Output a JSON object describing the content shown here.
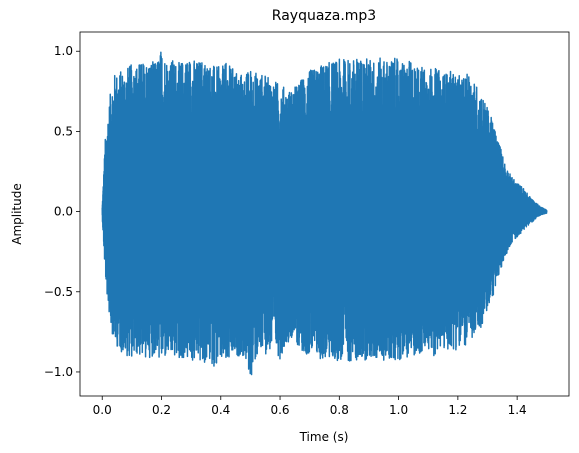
{
  "chart_data": {
    "type": "line",
    "title": "Rayquaza.mp3",
    "xlabel": "Time (s)",
    "ylabel": "Amplitude",
    "xlim": [
      -0.075,
      1.575
    ],
    "ylim": [
      -1.15,
      1.12
    ],
    "grid": false,
    "series_color": "#1f77b4",
    "x_ticks": [
      {
        "value": 0.0,
        "label": "0.0"
      },
      {
        "value": 0.2,
        "label": "0.2"
      },
      {
        "value": 0.4,
        "label": "0.4"
      },
      {
        "value": 0.6,
        "label": "0.6"
      },
      {
        "value": 0.8,
        "label": "0.8"
      },
      {
        "value": 1.0,
        "label": "1.0"
      },
      {
        "value": 1.2,
        "label": "1.2"
      },
      {
        "value": 1.4,
        "label": "1.4"
      }
    ],
    "y_ticks": [
      {
        "value": -1.0,
        "label": "−1.0"
      },
      {
        "value": -0.5,
        "label": "−0.5"
      },
      {
        "value": 0.0,
        "label": "0.0"
      },
      {
        "value": 0.5,
        "label": "0.5"
      },
      {
        "value": 1.0,
        "label": "1.0"
      }
    ],
    "series": [
      {
        "duration": 1.5,
        "envelope_upper": [
          [
            0.0,
            0.03
          ],
          [
            0.01,
            0.45
          ],
          [
            0.02,
            0.62
          ],
          [
            0.03,
            0.78
          ],
          [
            0.04,
            0.86
          ],
          [
            0.06,
            0.88
          ],
          [
            0.08,
            0.9
          ],
          [
            0.1,
            0.92
          ],
          [
            0.12,
            0.93
          ],
          [
            0.14,
            0.94
          ],
          [
            0.16,
            0.95
          ],
          [
            0.18,
            0.93
          ],
          [
            0.2,
            1.02
          ],
          [
            0.22,
            0.96
          ],
          [
            0.24,
            0.95
          ],
          [
            0.26,
            0.93
          ],
          [
            0.28,
            0.96
          ],
          [
            0.3,
            0.97
          ],
          [
            0.32,
            0.94
          ],
          [
            0.34,
            0.96
          ],
          [
            0.36,
            0.93
          ],
          [
            0.38,
            0.91
          ],
          [
            0.4,
            0.9
          ],
          [
            0.42,
            0.93
          ],
          [
            0.44,
            0.9
          ],
          [
            0.46,
            0.88
          ],
          [
            0.48,
            0.85
          ],
          [
            0.5,
            0.9
          ],
          [
            0.52,
            0.87
          ],
          [
            0.54,
            0.86
          ],
          [
            0.56,
            0.84
          ],
          [
            0.58,
            0.82
          ],
          [
            0.6,
            0.8
          ],
          [
            0.62,
            0.77
          ],
          [
            0.64,
            0.76
          ],
          [
            0.66,
            0.8
          ],
          [
            0.68,
            0.85
          ],
          [
            0.7,
            0.88
          ],
          [
            0.72,
            0.9
          ],
          [
            0.74,
            0.92
          ],
          [
            0.76,
            0.93
          ],
          [
            0.78,
            0.94
          ],
          [
            0.8,
            0.95
          ],
          [
            0.82,
            0.96
          ],
          [
            0.84,
            0.95
          ],
          [
            0.86,
            0.96
          ],
          [
            0.88,
            0.97
          ],
          [
            0.9,
            0.96
          ],
          [
            0.92,
            0.95
          ],
          [
            0.94,
            0.96
          ],
          [
            0.96,
            0.95
          ],
          [
            0.98,
            0.96
          ],
          [
            1.0,
            0.95
          ],
          [
            1.02,
            0.93
          ],
          [
            1.04,
            0.94
          ],
          [
            1.06,
            0.92
          ],
          [
            1.08,
            0.91
          ],
          [
            1.1,
            0.9
          ],
          [
            1.12,
            0.9
          ],
          [
            1.14,
            0.88
          ],
          [
            1.16,
            0.87
          ],
          [
            1.18,
            0.88
          ],
          [
            1.2,
            0.85
          ],
          [
            1.22,
            0.84
          ],
          [
            1.24,
            0.87
          ],
          [
            1.26,
            0.8
          ],
          [
            1.28,
            0.74
          ],
          [
            1.3,
            0.65
          ],
          [
            1.32,
            0.55
          ],
          [
            1.34,
            0.43
          ],
          [
            1.36,
            0.3
          ],
          [
            1.38,
            0.22
          ],
          [
            1.4,
            0.18
          ],
          [
            1.42,
            0.15
          ],
          [
            1.44,
            0.1
          ],
          [
            1.46,
            0.06
          ],
          [
            1.48,
            0.03
          ],
          [
            1.5,
            0.01
          ]
        ],
        "envelope_lower": [
          [
            0.0,
            -0.03
          ],
          [
            0.01,
            -0.4
          ],
          [
            0.02,
            -0.6
          ],
          [
            0.03,
            -0.72
          ],
          [
            0.04,
            -0.82
          ],
          [
            0.06,
            -0.87
          ],
          [
            0.08,
            -0.9
          ],
          [
            0.1,
            -0.91
          ],
          [
            0.12,
            -0.9
          ],
          [
            0.14,
            -0.92
          ],
          [
            0.16,
            -0.91
          ],
          [
            0.18,
            -0.9
          ],
          [
            0.2,
            -0.94
          ],
          [
            0.22,
            -0.92
          ],
          [
            0.24,
            -0.91
          ],
          [
            0.26,
            -0.93
          ],
          [
            0.28,
            -0.92
          ],
          [
            0.3,
            -0.95
          ],
          [
            0.32,
            -0.93
          ],
          [
            0.34,
            -0.96
          ],
          [
            0.36,
            -0.94
          ],
          [
            0.38,
            -0.97
          ],
          [
            0.4,
            -0.95
          ],
          [
            0.42,
            -0.96
          ],
          [
            0.44,
            -0.93
          ],
          [
            0.46,
            -0.9
          ],
          [
            0.48,
            -0.92
          ],
          [
            0.5,
            -1.05
          ],
          [
            0.52,
            -0.92
          ],
          [
            0.54,
            -0.9
          ],
          [
            0.56,
            -0.88
          ],
          [
            0.58,
            -0.86
          ],
          [
            0.6,
            -0.92
          ],
          [
            0.62,
            -0.82
          ],
          [
            0.64,
            -0.8
          ],
          [
            0.66,
            -0.84
          ],
          [
            0.68,
            -0.88
          ],
          [
            0.7,
            -0.9
          ],
          [
            0.72,
            -0.92
          ],
          [
            0.74,
            -0.93
          ],
          [
            0.76,
            -0.92
          ],
          [
            0.78,
            -0.94
          ],
          [
            0.8,
            -0.93
          ],
          [
            0.82,
            -0.95
          ],
          [
            0.84,
            -0.93
          ],
          [
            0.86,
            -0.94
          ],
          [
            0.88,
            -0.93
          ],
          [
            0.9,
            -0.92
          ],
          [
            0.92,
            -0.93
          ],
          [
            0.94,
            -0.92
          ],
          [
            0.96,
            -0.94
          ],
          [
            0.98,
            -0.92
          ],
          [
            1.0,
            -0.93
          ],
          [
            1.02,
            -0.9
          ],
          [
            1.04,
            -0.92
          ],
          [
            1.06,
            -0.89
          ],
          [
            1.08,
            -0.9
          ],
          [
            1.1,
            -0.88
          ],
          [
            1.12,
            -0.9
          ],
          [
            1.14,
            -0.86
          ],
          [
            1.16,
            -0.88
          ],
          [
            1.18,
            -0.85
          ],
          [
            1.2,
            -0.87
          ],
          [
            1.22,
            -0.84
          ],
          [
            1.24,
            -0.83
          ],
          [
            1.26,
            -0.78
          ],
          [
            1.28,
            -0.72
          ],
          [
            1.3,
            -0.62
          ],
          [
            1.32,
            -0.52
          ],
          [
            1.34,
            -0.4
          ],
          [
            1.36,
            -0.28
          ],
          [
            1.38,
            -0.2
          ],
          [
            1.4,
            -0.16
          ],
          [
            1.42,
            -0.12
          ],
          [
            1.44,
            -0.08
          ],
          [
            1.46,
            -0.05
          ],
          [
            1.48,
            -0.02
          ],
          [
            1.5,
            -0.01
          ]
        ]
      }
    ]
  }
}
